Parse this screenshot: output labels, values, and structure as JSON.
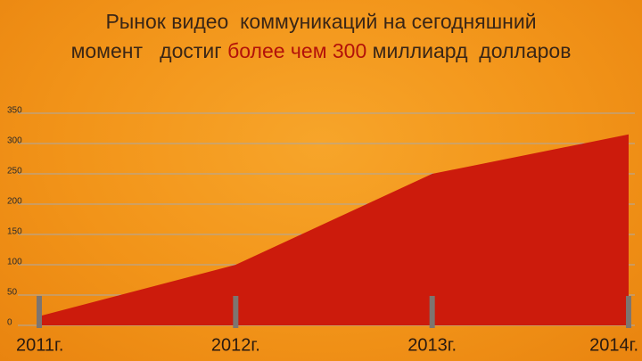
{
  "chart_data": {
    "type": "area",
    "title_lines": [
      [
        {
          "text": "Рынок видео  коммуникаций на сегодняшний",
          "color": "#3a2616"
        }
      ],
      [
        {
          "text": "момент   достиг ",
          "color": "#3a2616"
        },
        {
          "text": "более чем 300",
          "color": "#b3120a"
        },
        {
          "text": " миллиард  долларов",
          "color": "#3a2616"
        }
      ]
    ],
    "categories": [
      "2011г.",
      "2012г.",
      "2013г.",
      "2014г."
    ],
    "values": [
      15,
      100,
      250,
      315
    ],
    "color": "#cc1b0c",
    "ylim": [
      0,
      350
    ],
    "yticks": [
      0,
      50,
      100,
      150,
      200,
      250,
      300,
      350
    ],
    "grid": true
  }
}
